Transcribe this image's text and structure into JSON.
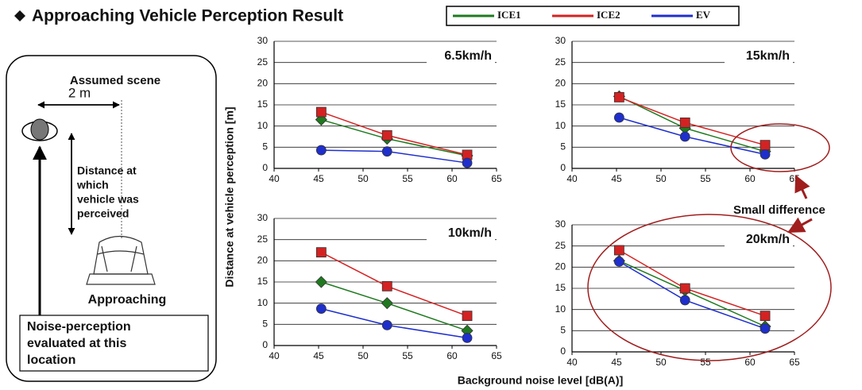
{
  "header": {
    "title": "Approaching Vehicle Perception Result"
  },
  "scene": {
    "title": "Assumed scene",
    "distance": "2 m",
    "distance_label": [
      "Distance at",
      "which",
      "vehicle was",
      "perceived"
    ],
    "approaching": "Approaching",
    "location_label": [
      "Noise-perception",
      "evaluated at this",
      "location"
    ]
  },
  "axes": {
    "y_label": "Distance at vehicle perception [m]",
    "x_label": "Background noise level [dB(A)]"
  },
  "annotation": "Small difference",
  "chart_data": [
    {
      "type": "line",
      "title": "6.5km/h",
      "x": [
        45.3,
        52.7,
        61.7
      ],
      "series": [
        {
          "name": "ICE1",
          "color": "#1f7a1f",
          "marker": "diamond",
          "values": [
            11.5,
            7,
            3
          ]
        },
        {
          "name": "ICE2",
          "color": "#d42222",
          "marker": "square",
          "values": [
            13.3,
            7.8,
            3.2
          ]
        },
        {
          "name": "EV",
          "color": "#1f2fcc",
          "marker": "circle",
          "values": [
            4.3,
            4,
            1.3
          ]
        }
      ],
      "xlim": [
        40,
        65
      ],
      "xticks": [
        40,
        45,
        50,
        55,
        60,
        65
      ],
      "ylim": [
        0,
        30
      ],
      "yticks": [
        0,
        5,
        10,
        15,
        20,
        25,
        30
      ],
      "grid": true
    },
    {
      "type": "line",
      "title": "15km/h",
      "x": [
        45.3,
        52.7,
        61.7
      ],
      "series": [
        {
          "color": "#1f7a1f",
          "marker": "diamond",
          "values": [
            17,
            9.5,
            4
          ]
        },
        {
          "color": "#d42222",
          "marker": "square",
          "values": [
            16.8,
            10.8,
            5.5
          ]
        },
        {
          "color": "#1f2fcc",
          "marker": "circle",
          "values": [
            12,
            7.5,
            3.3
          ]
        }
      ],
      "xlim": [
        40,
        65
      ],
      "xticks": [
        40,
        45,
        50,
        55,
        60,
        65
      ],
      "ylim": [
        0,
        30
      ],
      "yticks": [
        0,
        5,
        10,
        15,
        20,
        25,
        30
      ],
      "grid": true
    },
    {
      "type": "line",
      "title": "10km/h",
      "x": [
        45.3,
        52.7,
        61.7
      ],
      "series": [
        {
          "color": "#1f7a1f",
          "marker": "diamond",
          "values": [
            15,
            10,
            3.5
          ]
        },
        {
          "color": "#d42222",
          "marker": "square",
          "values": [
            22,
            14,
            7
          ]
        },
        {
          "color": "#1f2fcc",
          "marker": "circle",
          "values": [
            8.7,
            4.8,
            1.8
          ]
        }
      ],
      "xlim": [
        40,
        65
      ],
      "xticks": [
        40,
        45,
        50,
        55,
        60,
        65
      ],
      "ylim": [
        0,
        30
      ],
      "yticks": [
        0,
        5,
        10,
        15,
        20,
        25,
        30
      ],
      "grid": true
    },
    {
      "type": "line",
      "title": "20km/h",
      "x": [
        45.3,
        52.7,
        61.7
      ],
      "series": [
        {
          "color": "#1f7a1f",
          "marker": "diamond",
          "values": [
            21.5,
            14.5,
            6
          ]
        },
        {
          "color": "#d42222",
          "marker": "square",
          "values": [
            24,
            15,
            8.5
          ]
        },
        {
          "color": "#1f2fcc",
          "marker": "circle",
          "values": [
            21.3,
            12.2,
            5.5
          ]
        }
      ],
      "xlim": [
        40,
        65
      ],
      "xticks": [
        40,
        45,
        50,
        55,
        60,
        65
      ],
      "ylim": [
        0,
        30
      ],
      "yticks": [
        0,
        5,
        10,
        15,
        20,
        25,
        30
      ],
      "grid": true
    }
  ]
}
